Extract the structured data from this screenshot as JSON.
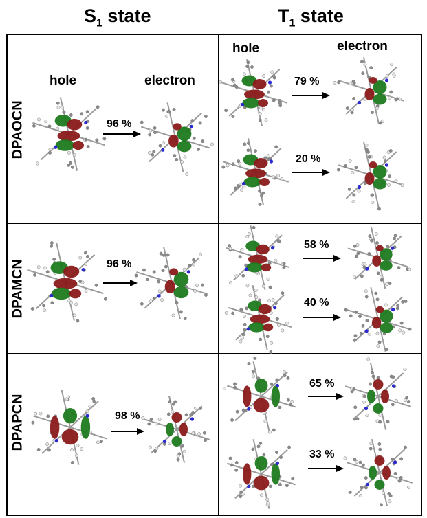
{
  "columns": {
    "s1": {
      "main": "S",
      "sub": "1",
      "rest": " state"
    },
    "t1": {
      "main": "T",
      "sub": "1",
      "rest": " state"
    }
  },
  "labels": {
    "hole": "hole",
    "electron": "electron"
  },
  "rows": [
    {
      "name": "DPAOCN",
      "s1_percent": "96 %",
      "t1_percents": [
        "79 %",
        "20 %"
      ]
    },
    {
      "name": "DPAMCN",
      "s1_percent": "96 %",
      "t1_percents": [
        "58 %",
        "40 %"
      ]
    },
    {
      "name": "DPAPCN",
      "s1_percent": "98 %",
      "t1_percents": [
        "65 %",
        "33 %"
      ]
    }
  ],
  "colors": {
    "orbital_positive": "#1e7a1e",
    "orbital_negative": "#8b1a1a",
    "atom_carbon": "#8a8a8a",
    "atom_nitrogen": "#2a2ad0",
    "atom_hydrogen": "#e6e6e6"
  }
}
